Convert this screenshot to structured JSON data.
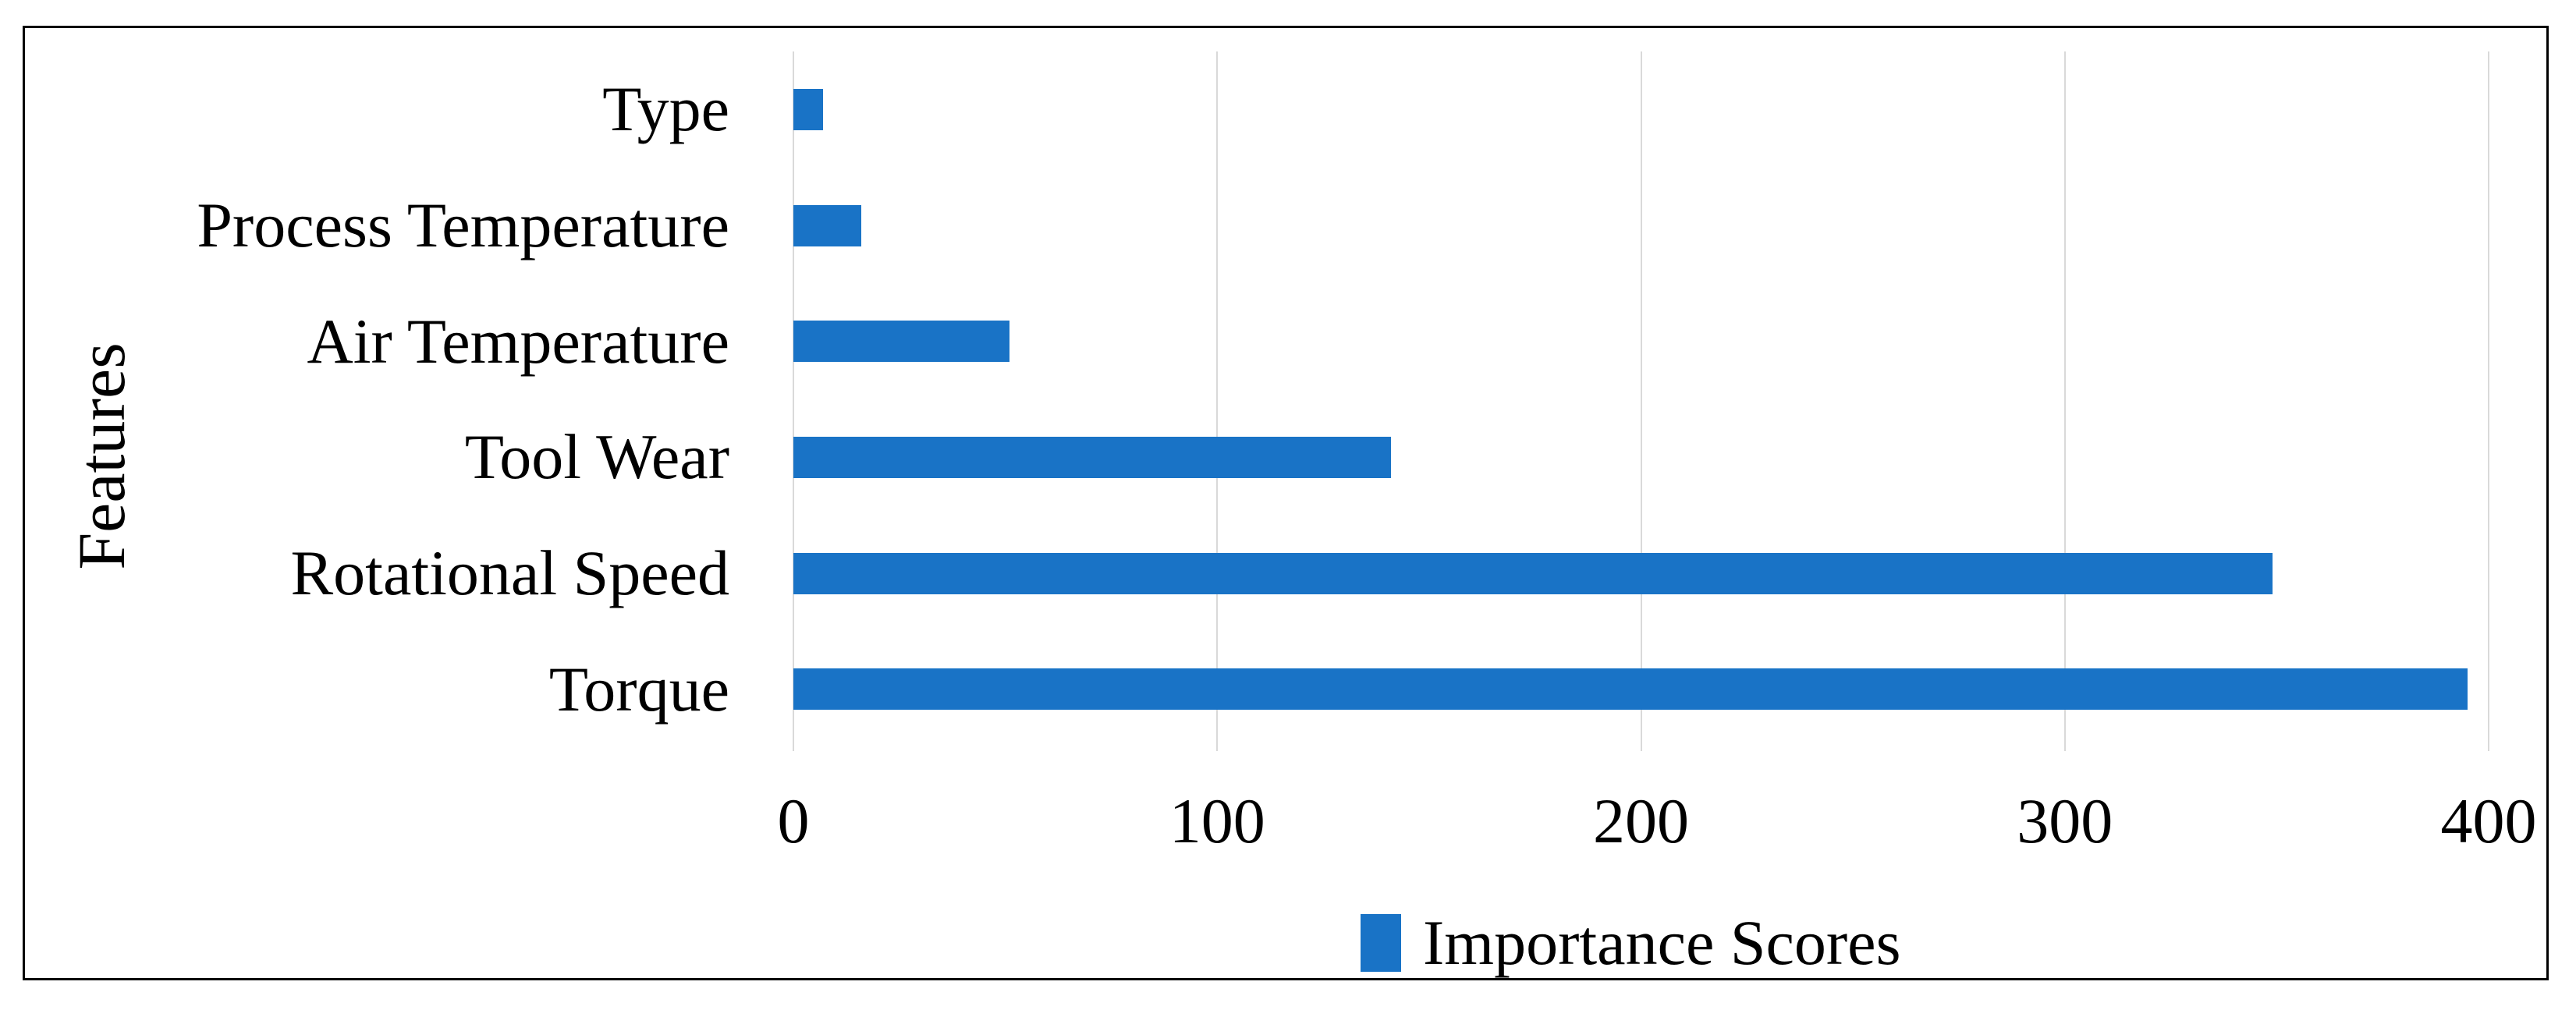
{
  "figure": {
    "background": "#FFFFFF",
    "border_color": "#000000"
  },
  "chart_data": {
    "type": "bar",
    "orientation": "horizontal",
    "title": "",
    "xlabel": "",
    "ylabel": "Features",
    "categories": [
      "Type",
      "Process Temperature",
      "Air Temperature",
      "Tool Wear",
      "Rotational Speed",
      "Torque"
    ],
    "series": [
      {
        "name": "Importance Scores",
        "values": [
          7,
          16,
          51,
          141,
          349,
          395
        ],
        "color": "#1973C6"
      }
    ],
    "xlim": [
      0,
      400
    ],
    "x_ticks": [
      "0",
      "100",
      "200",
      "300",
      "400"
    ],
    "grid": "vertical-gridlines",
    "gridline_color": "#D9D9D9",
    "legend_position": "bottom-center",
    "legend_entries": [
      "Importance Scores"
    ]
  }
}
